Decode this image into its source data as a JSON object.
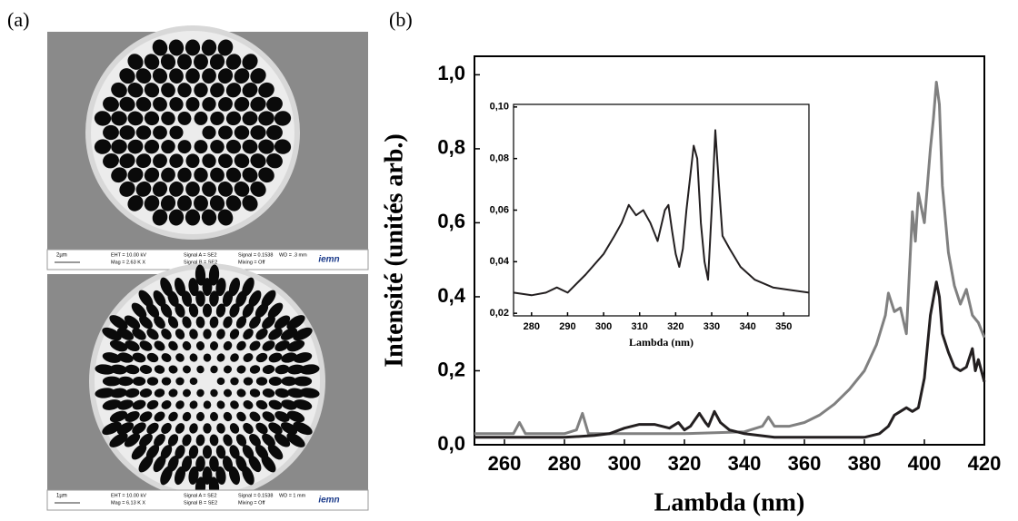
{
  "panel_labels": [
    "(a)",
    "(b)"
  ],
  "sem_panels": [
    {
      "scale": "2µm",
      "fields": [
        "EHT = 10.00 kV",
        "Mag = 2.63 K X",
        "Signal A = SE2",
        "Signal B = SE2",
        "Signal = 0.1538",
        "Mixing = Off",
        "WD = .3 mm"
      ],
      "logo": "iemn"
    },
    {
      "scale": "1µm",
      "fields": [
        "EHT = 10.00 kV",
        "Mag = 6.13 K X",
        "Signal A = SE2",
        "Signal B = SE2",
        "Signal = 0.1538",
        "Mixing = Off",
        "WD = 1 mm"
      ],
      "logo": "iemn"
    }
  ],
  "chart_data": [
    {
      "type": "line",
      "x_label": "Lambda (nm)",
      "y_label": "Intensité (unités arb.)",
      "xlim": [
        250,
        420
      ],
      "xticks": [
        260,
        280,
        300,
        320,
        340,
        360,
        380,
        400,
        420
      ],
      "ylim": [
        0,
        1.05
      ],
      "yticks": [
        {
          "value": 0,
          "label": "0,0"
        },
        {
          "value": 0.2,
          "label": "0,2"
        },
        {
          "value": 0.4,
          "label": "0,4"
        },
        {
          "value": 0.6,
          "label": "0,6"
        },
        {
          "value": 0.8,
          "label": "0,8"
        },
        {
          "value": 1.0,
          "label": "1,0"
        }
      ],
      "series": [
        {
          "color": "#808080",
          "x": [
            250,
            260,
            263,
            265,
            267,
            280,
            284,
            286,
            288,
            300,
            320,
            340,
            346,
            348,
            350,
            355,
            360,
            365,
            370,
            375,
            380,
            384,
            387,
            388,
            390,
            392,
            394,
            396,
            397,
            398,
            400,
            402,
            403,
            404,
            405,
            406,
            408,
            410,
            412,
            414,
            416,
            418,
            420
          ],
          "values": [
            0.03,
            0.03,
            0.03,
            0.06,
            0.03,
            0.03,
            0.04,
            0.085,
            0.03,
            0.03,
            0.03,
            0.035,
            0.05,
            0.075,
            0.05,
            0.05,
            0.06,
            0.08,
            0.11,
            0.15,
            0.2,
            0.27,
            0.35,
            0.41,
            0.36,
            0.37,
            0.3,
            0.63,
            0.55,
            0.68,
            0.6,
            0.8,
            0.88,
            0.98,
            0.92,
            0.7,
            0.52,
            0.43,
            0.38,
            0.42,
            0.35,
            0.33,
            0.29
          ]
        },
        {
          "color": "#231f20",
          "x": [
            250,
            280,
            290,
            295,
            300,
            305,
            310,
            315,
            318,
            320,
            322,
            325,
            327,
            328,
            330,
            332,
            335,
            340,
            350,
            370,
            380,
            385,
            388,
            390,
            392,
            394,
            396,
            398,
            400,
            402,
            404,
            405,
            406,
            408,
            410,
            412,
            414,
            416,
            417,
            418,
            420
          ],
          "values": [
            0.02,
            0.02,
            0.025,
            0.03,
            0.045,
            0.055,
            0.055,
            0.045,
            0.06,
            0.04,
            0.05,
            0.085,
            0.06,
            0.05,
            0.09,
            0.06,
            0.04,
            0.03,
            0.02,
            0.02,
            0.02,
            0.03,
            0.05,
            0.08,
            0.09,
            0.1,
            0.09,
            0.1,
            0.18,
            0.35,
            0.44,
            0.4,
            0.3,
            0.25,
            0.21,
            0.2,
            0.21,
            0.26,
            0.2,
            0.23,
            0.17
          ]
        }
      ]
    },
    {
      "type": "line",
      "x_label": "Lambda (nm)",
      "xlim": [
        275,
        357
      ],
      "xticks": [
        280,
        290,
        300,
        310,
        320,
        330,
        340,
        350
      ],
      "ylim": [
        0.019,
        0.101
      ],
      "yticks": [
        {
          "value": 0.02,
          "label": "0,02"
        },
        {
          "value": 0.04,
          "label": "0,04"
        },
        {
          "value": 0.06,
          "label": "0,06"
        },
        {
          "value": 0.08,
          "label": "0,08"
        },
        {
          "value": 0.1,
          "label": "0,10"
        }
      ],
      "series": [
        {
          "color": "#231f20",
          "x": [
            275,
            280,
            284,
            287,
            290,
            295,
            300,
            303,
            305,
            307,
            309,
            311,
            313,
            315,
            317,
            318,
            319,
            320,
            321,
            322,
            323,
            325,
            326,
            327,
            328,
            329,
            330,
            331,
            332,
            333,
            335,
            338,
            342,
            347,
            352,
            357
          ],
          "values": [
            0.028,
            0.027,
            0.028,
            0.03,
            0.028,
            0.035,
            0.043,
            0.05,
            0.055,
            0.062,
            0.058,
            0.06,
            0.055,
            0.048,
            0.06,
            0.062,
            0.052,
            0.043,
            0.038,
            0.045,
            0.06,
            0.085,
            0.08,
            0.055,
            0.04,
            0.033,
            0.06,
            0.091,
            0.07,
            0.05,
            0.045,
            0.038,
            0.033,
            0.03,
            0.029,
            0.028
          ]
        }
      ]
    }
  ]
}
